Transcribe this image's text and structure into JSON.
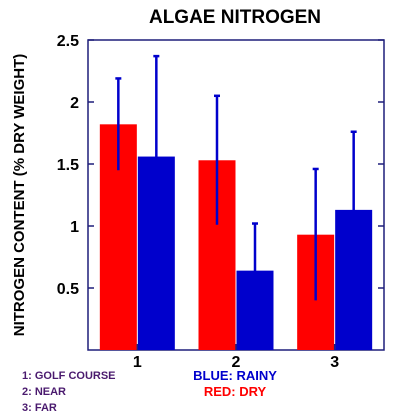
{
  "chart_data": {
    "type": "bar",
    "title": "ALGAE NITROGEN",
    "ylabel": "NITROGEN CONTENT (% DRY WEIGHT)",
    "xlabel": "",
    "categories": [
      "1",
      "2",
      "3"
    ],
    "ylim": [
      0,
      2.5
    ],
    "yticks": [
      "0.5",
      "1",
      "1.5",
      "2",
      "2.5"
    ],
    "grid": false,
    "series": [
      {
        "name": "DRY",
        "color": "#ff0000",
        "values": [
          1.82,
          1.53,
          0.93
        ],
        "error": [
          0.37,
          0.52,
          0.53
        ]
      },
      {
        "name": "RAINY",
        "color": "#0000cc",
        "values": [
          1.56,
          0.64,
          1.13
        ],
        "error": [
          0.81,
          0.38,
          0.63
        ]
      }
    ],
    "error_bar_color": "#0000cc"
  },
  "legend": {
    "keys": [
      "1: GOLF COURSE",
      "2: NEAR",
      "3: FAR"
    ],
    "rainy_label": "BLUE: RAINY",
    "dry_label": "RED: DRY",
    "rainy_color": "#0000cc",
    "dry_color": "#ff0000"
  }
}
